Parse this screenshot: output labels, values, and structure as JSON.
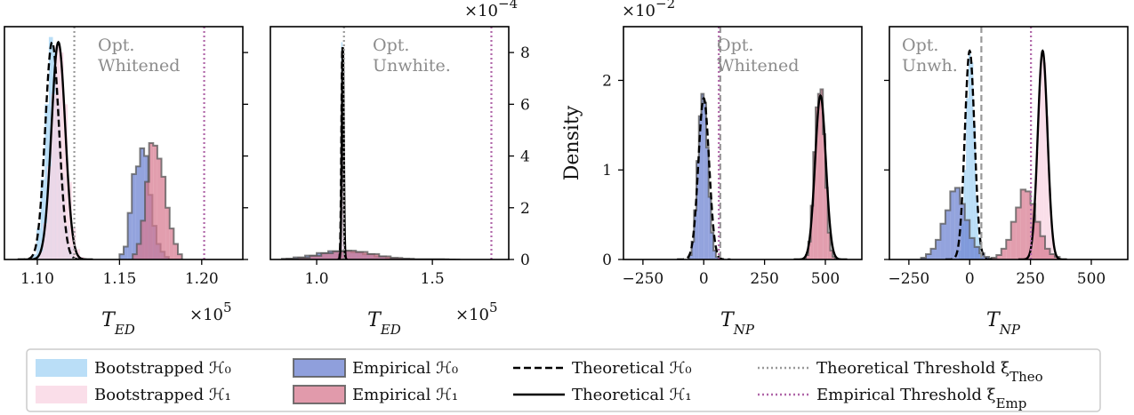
{
  "figure": {
    "legend": {
      "items": [
        {
          "kind": "patch",
          "label": "Bootstrapped ℋ₀",
          "fill": "#a9d6f5",
          "edge": "#a9d6f5",
          "alpha": 0.8
        },
        {
          "kind": "patch",
          "label": "Bootstrapped ℋ₁",
          "fill": "#f9d6e3",
          "edge": "#f9d6e3",
          "alpha": 0.8
        },
        {
          "kind": "patch",
          "label": "Empirical ℋ₀",
          "fill": "#6a7fd0",
          "edge": "#555555",
          "alpha": 0.75
        },
        {
          "kind": "patch",
          "label": "Empirical ℋ₁",
          "fill": "#d7788f",
          "edge": "#555555",
          "alpha": 0.75
        },
        {
          "kind": "line",
          "label": "Theoretical ℋ₀",
          "color": "#000000",
          "dash": "dashed"
        },
        {
          "kind": "line",
          "label": "Theoretical ℋ₁",
          "color": "#000000",
          "dash": "solid"
        },
        {
          "kind": "line",
          "label": "Theoretical Threshold ξ",
          "sub": "Theo",
          "color": "#999999",
          "dash": "dotted"
        },
        {
          "kind": "line",
          "label": "Empirical Threshold ξ",
          "sub": "Emp",
          "color": "#b066a8",
          "dash": "dotted"
        }
      ]
    },
    "colors": {
      "boot_h0": "#a9d6f5",
      "boot_h1": "#f9d6e3",
      "emp_h0": "#6a7fd0",
      "emp_h1": "#d7788f",
      "edge": "#555555",
      "theo_threshold": "#999999",
      "emp_threshold": "#b066a8"
    }
  },
  "chart_data": [
    {
      "type": "histogram",
      "id": "panel1",
      "annotation": [
        "Opt.",
        "Whitened"
      ],
      "xlabel": "T",
      "xlabel_sub": "ED",
      "x_multiplier": "×10",
      "x_multiplier_exp": "5",
      "xlim": [
        1.08,
        1.225
      ],
      "xticks": [
        1.1,
        1.15,
        1.2
      ],
      "xtick_labels": [
        "1.10",
        "1.15",
        "1.20"
      ],
      "ylim": [
        0,
        9.0
      ],
      "yticks": [
        0,
        2,
        4,
        6,
        8
      ],
      "ytick_labels": [],
      "y_side": "right",
      "y_multiplier": "",
      "thresholds": {
        "theoretical": 1.1225,
        "empirical": 1.2015
      },
      "theoretical": [
        {
          "dist": "H0",
          "mu": 1.109,
          "sigma": 0.0042,
          "peak": 8.4,
          "dash": "dashed"
        },
        {
          "dist": "H1",
          "mu": 1.1128,
          "sigma": 0.0042,
          "peak": 8.4,
          "dash": "solid"
        }
      ],
      "histograms": [
        {
          "series": "boot_h0",
          "x_start": 1.097,
          "bin": 0.0025,
          "heights": [
            0.2,
            1.2,
            3.1,
            6.0,
            8.6,
            8.0,
            6.1,
            3.2,
            1.3,
            0.5,
            0.1
          ]
        },
        {
          "series": "boot_h1",
          "x_start": 1.101,
          "bin": 0.0025,
          "heights": [
            0.3,
            1.4,
            3.6,
            6.4,
            8.3,
            8.0,
            6.0,
            3.0,
            1.2,
            0.4,
            0.1
          ]
        },
        {
          "series": "emp_h0",
          "x_start": 1.15,
          "bin": 0.0025,
          "heights": [
            0.2,
            0.5,
            1.8,
            3.3,
            3.6,
            4.3,
            4.0,
            2.5,
            1.3,
            0.6,
            0.3,
            0.1
          ]
        },
        {
          "series": "emp_h1",
          "x_start": 1.158,
          "bin": 0.0025,
          "heights": [
            0.2,
            0.6,
            1.5,
            3.0,
            4.5,
            4.4,
            3.9,
            3.2,
            2.0,
            1.2,
            0.6,
            0.2
          ]
        }
      ]
    },
    {
      "type": "histogram",
      "id": "panel2",
      "annotation": [
        "Opt.",
        "Unwhite."
      ],
      "xlabel": "T",
      "xlabel_sub": "ED",
      "x_multiplier": "×10",
      "x_multiplier_exp": "5",
      "xlim": [
        0.8,
        1.83
      ],
      "xticks": [
        1.0,
        1.5
      ],
      "xtick_labels": [
        "1.0",
        "1.5"
      ],
      "ylim": [
        0,
        9.0
      ],
      "yticks": [
        0,
        2,
        4,
        6,
        8
      ],
      "ytick_labels": [
        "0",
        "2",
        "4",
        "6",
        "8"
      ],
      "y_side": "right",
      "y_multiplier": "×10",
      "y_multiplier_exp": "−4",
      "thresholds": {
        "theoretical": 1.118,
        "empirical": 1.755
      },
      "theoretical": [
        {
          "dist": "H0",
          "mu": 1.111,
          "sigma": 0.0042,
          "peak": 8.2,
          "dash": "dashed"
        },
        {
          "dist": "H1",
          "mu": 1.113,
          "sigma": 0.0042,
          "peak": 8.2,
          "dash": "solid"
        }
      ],
      "histograms": [
        {
          "series": "boot_h0",
          "x_start": 1.1,
          "bin": 0.006,
          "heights": [
            1.0,
            8.4,
            5.0,
            0.6
          ]
        },
        {
          "series": "boot_h1",
          "x_start": 1.103,
          "bin": 0.006,
          "heights": [
            1.2,
            8.1,
            4.8,
            0.5
          ]
        },
        {
          "series": "emp_h0",
          "x_start": 0.85,
          "bin": 0.05,
          "heights": [
            0.03,
            0.08,
            0.15,
            0.25,
            0.32,
            0.33,
            0.28,
            0.2,
            0.12,
            0.06,
            0.03,
            0.01,
            0.01,
            0.01,
            0.0
          ]
        },
        {
          "series": "emp_h1",
          "x_start": 0.87,
          "bin": 0.05,
          "heights": [
            0.03,
            0.07,
            0.14,
            0.24,
            0.31,
            0.34,
            0.29,
            0.21,
            0.12,
            0.06,
            0.03,
            0.01,
            0.01,
            0.01,
            0.0
          ]
        }
      ]
    },
    {
      "type": "histogram",
      "id": "panel3",
      "annotation": [
        "Opt.",
        "Whitened"
      ],
      "xlabel": "T",
      "xlabel_sub": "NP",
      "x_multiplier": "",
      "xlim": [
        -330,
        650
      ],
      "xticks": [
        -250,
        0,
        250,
        500
      ],
      "xtick_labels": [
        "−250",
        "0",
        "250",
        "500"
      ],
      "ylim": [
        0,
        2.6
      ],
      "yticks": [
        0,
        1,
        2
      ],
      "ytick_labels": [
        "0",
        "1",
        "2"
      ],
      "y_side": "left",
      "ylabel": "Density",
      "y_multiplier": "×10",
      "y_multiplier_exp": "−2",
      "thresholds": {
        "theoretical": 68,
        "empirical": 62
      },
      "theoretical": [
        {
          "dist": "H0",
          "mu": 0,
          "sigma": 22,
          "peak": 1.8,
          "dash": "dashed"
        },
        {
          "dist": "H1",
          "mu": 480,
          "sigma": 22,
          "peak": 1.83,
          "dash": "solid"
        }
      ],
      "histograms": [
        {
          "series": "emp_h0",
          "x_start": -60,
          "bin": 10,
          "heights": [
            0.05,
            0.2,
            0.55,
            1.1,
            1.6,
            1.85,
            1.75,
            1.25,
            0.7,
            0.3,
            0.1,
            0.03
          ]
        },
        {
          "series": "emp_h1",
          "x_start": 420,
          "bin": 10,
          "heights": [
            0.05,
            0.2,
            0.6,
            1.2,
            1.7,
            1.85,
            1.9,
            1.4,
            0.8,
            0.3,
            0.1,
            0.03
          ]
        }
      ]
    },
    {
      "type": "histogram",
      "id": "panel4",
      "annotation": [
        "Opt.",
        "Unwh."
      ],
      "xlabel": "T",
      "xlabel_sub": "NP",
      "x_multiplier": "",
      "xlim": [
        -330,
        650
      ],
      "xticks": [
        -250,
        0,
        250,
        500
      ],
      "xtick_labels": [
        "−250",
        "0",
        "250",
        "500"
      ],
      "ylim": [
        0,
        2.6
      ],
      "yticks": [
        0,
        1,
        2
      ],
      "ytick_labels": [],
      "y_side": "left",
      "y_multiplier": "",
      "thresholds": {
        "theoretical": 48,
        "empirical": 252
      },
      "theoretical": [
        {
          "dist": "H0",
          "mu": 0,
          "sigma": 20,
          "peak": 2.33,
          "dash": "dashed"
        },
        {
          "dist": "H1",
          "mu": 300,
          "sigma": 20,
          "peak": 2.33,
          "dash": "solid"
        }
      ],
      "histograms": [
        {
          "series": "boot_h0",
          "x_start": -45,
          "bin": 10,
          "heights": [
            0.1,
            0.4,
            1.0,
            1.8,
            2.3,
            2.2,
            1.5,
            0.7,
            0.25,
            0.05
          ]
        },
        {
          "series": "boot_h1",
          "x_start": 255,
          "bin": 10,
          "heights": [
            0.1,
            0.5,
            1.2,
            1.9,
            2.3,
            2.2,
            1.6,
            0.8,
            0.3,
            0.05
          ]
        },
        {
          "series": "emp_h0",
          "x_start": -200,
          "bin": 20,
          "heights": [
            0.02,
            0.06,
            0.12,
            0.22,
            0.4,
            0.55,
            0.76,
            0.8,
            0.62,
            0.44,
            0.24,
            0.14,
            0.07,
            0.03,
            0.01,
            0.0
          ]
        },
        {
          "series": "emp_h1",
          "x_start": 90,
          "bin": 20,
          "heights": [
            0.02,
            0.05,
            0.12,
            0.22,
            0.42,
            0.58,
            0.78,
            0.76,
            0.62,
            0.42,
            0.26,
            0.12,
            0.06,
            0.03
          ]
        }
      ]
    }
  ]
}
